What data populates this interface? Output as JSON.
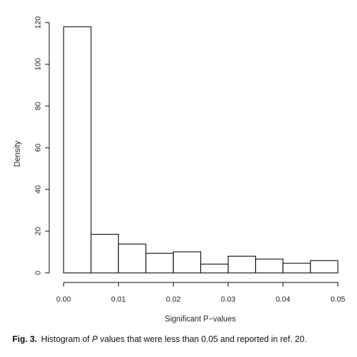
{
  "chart_data": {
    "type": "histogram",
    "xlabel": "Significant P−values",
    "ylabel": "Density",
    "xlim": [
      0,
      0.05
    ],
    "ylim": [
      0,
      120
    ],
    "x_ticks": [
      "0.00",
      "0.01",
      "0.02",
      "0.03",
      "0.04",
      "0.05"
    ],
    "y_ticks": [
      "0",
      "20",
      "40",
      "60",
      "80",
      "100",
      "120"
    ],
    "bin_edges": [
      0,
      0.005,
      0.01,
      0.015,
      0.02,
      0.025,
      0.03,
      0.035,
      0.04,
      0.045,
      0.05
    ],
    "values": [
      118,
      18.5,
      13.8,
      9.4,
      10.1,
      4.2,
      8.0,
      6.6,
      4.6,
      5.9
    ],
    "bar_fill": "#ffffff",
    "bar_stroke": "#000000",
    "grid": false
  },
  "caption": {
    "label": "Fig. 3.",
    "text_before": "Histogram of ",
    "italic": "P",
    "text_after": " values that were less than 0.05 and reported in ref. 20."
  }
}
